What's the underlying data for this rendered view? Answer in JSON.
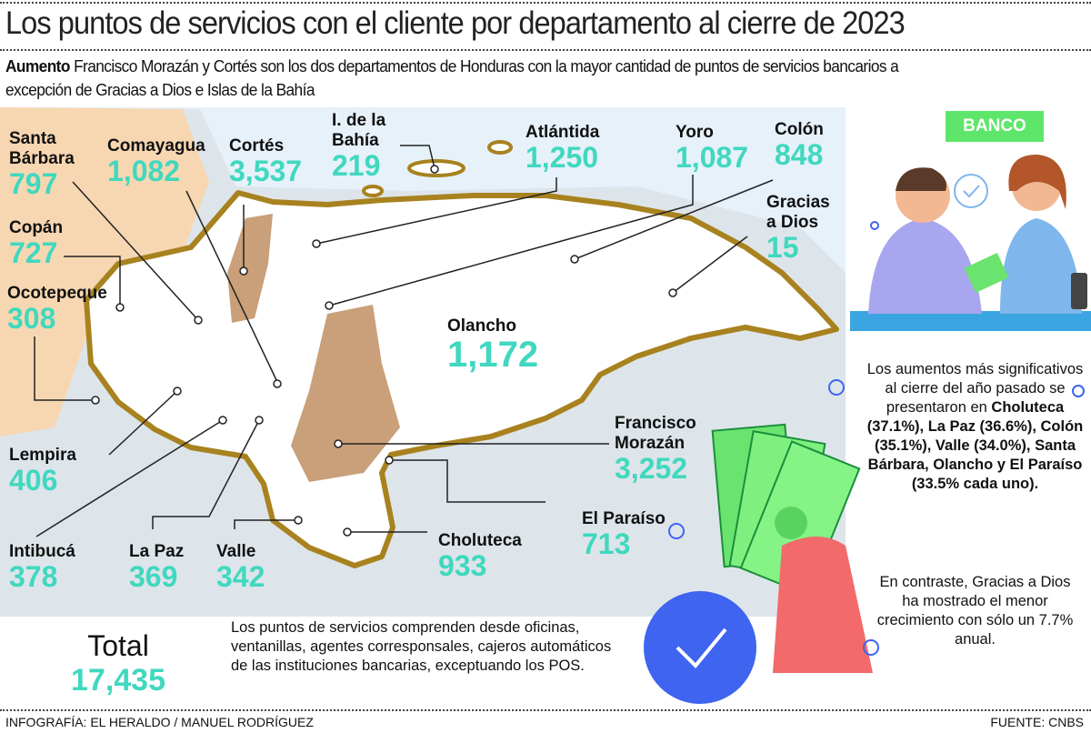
{
  "title": "Los puntos de servicios con el cliente por departamento al cierre de 2023",
  "subtitle": {
    "lead": "Aumento",
    "text": " Francisco Morazán y Cortés son los dos departamentos de Honduras con la mayor cantidad de puntos de servicios bancarios a excepción de Gracias a Dios e Islas de la Bahía"
  },
  "colors": {
    "value": "#40d8bf",
    "border": "#a8821f",
    "highlight": "#c9a07a",
    "neighbors": "#f7d7b2",
    "sea": "#dde5ea",
    "accent_green": "#5ee66a"
  },
  "departments": [
    {
      "name": "Santa Bárbara",
      "value": "797"
    },
    {
      "name": "Comayagua",
      "value": "1,082"
    },
    {
      "name": "Cortés",
      "value": "3,537"
    },
    {
      "name": "I. de la Bahía",
      "value": "219"
    },
    {
      "name": "Atlántida",
      "value": "1,250"
    },
    {
      "name": "Yoro",
      "value": "1,087"
    },
    {
      "name": "Colón",
      "value": "848"
    },
    {
      "name": "Gracias a Dios",
      "value": "15"
    },
    {
      "name": "Copán",
      "value": "727"
    },
    {
      "name": "Ocotepeque",
      "value": "308"
    },
    {
      "name": "Olancho",
      "value": "1,172"
    },
    {
      "name": "Francisco Morazán",
      "value": "3,252"
    },
    {
      "name": "El Paraíso",
      "value": "713"
    },
    {
      "name": "Choluteca",
      "value": "933"
    },
    {
      "name": "Lempira",
      "value": "406"
    },
    {
      "name": "Intibucá",
      "value": "378"
    },
    {
      "name": "La Paz",
      "value": "369"
    },
    {
      "name": "Valle",
      "value": "342"
    }
  ],
  "total": {
    "label": "Total",
    "value": "17,435"
  },
  "note": "Los puntos de servicios comprenden desde oficinas, ventanillas, agentes corresponsales, cajeros automáticos de las instituciones bancarias, exceptuando los POS.",
  "side": {
    "p1_a": "Los aumentos más significativos al cierre del año pasado se presentaron en ",
    "p1_b": "Choluteca (37.1%), La Paz (36.6%), Colón (35.1%), Valle (34.0%), Santa Bárbara, Olancho y El Paraíso (33.5% cada uno).",
    "p2": "En contraste, Gracias a Dios ha mostrado el menor crecimiento con sólo un 7.7% anual."
  },
  "bank_sign": "BANCO",
  "icons": [
    "bank-teller-illustration",
    "money-bills-icon",
    "check-circle-icon"
  ],
  "credit": "INFOGRAFÍA: EL HERALDO / MANUEL RODRÍGUEZ",
  "source": "FUENTE: CNBS"
}
